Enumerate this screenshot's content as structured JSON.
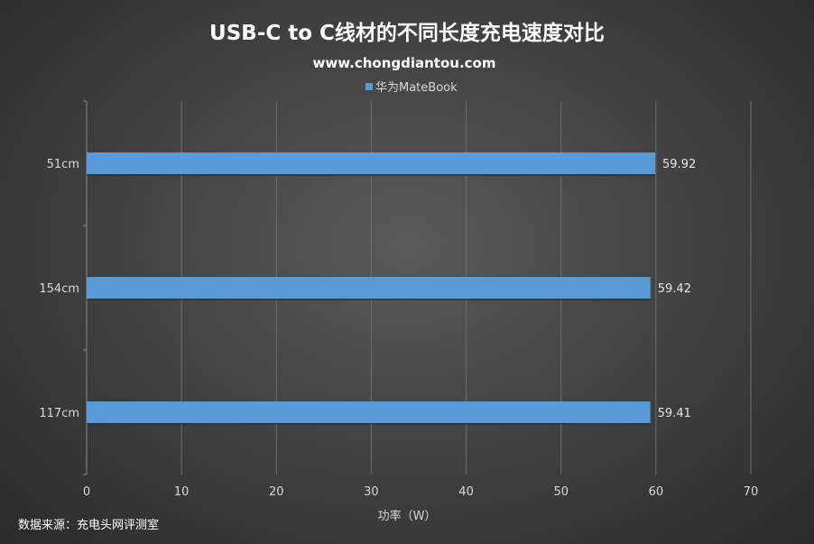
{
  "chart_data": {
    "type": "bar",
    "orientation": "horizontal",
    "title": "USB-C to C线材的不同长度充电速度对比",
    "subtitle": "www.chongdiantou.com",
    "categories": [
      "51cm",
      "154cm",
      "117cm"
    ],
    "series": [
      {
        "name": "华为MateBook",
        "values": [
          59.92,
          59.42,
          59.41
        ],
        "color": "#5b9bd5"
      }
    ],
    "data_labels": [
      "59.92",
      "59.42",
      "59.41"
    ],
    "xlabel": "功率（W）",
    "ylabel": "",
    "xlim": [
      0,
      70
    ],
    "xticks": [
      0,
      10,
      20,
      30,
      40,
      50,
      60,
      70
    ],
    "grid": "vertical",
    "legend_position": "top-center"
  },
  "footer": {
    "source": "数据来源：充电头网评测室"
  }
}
